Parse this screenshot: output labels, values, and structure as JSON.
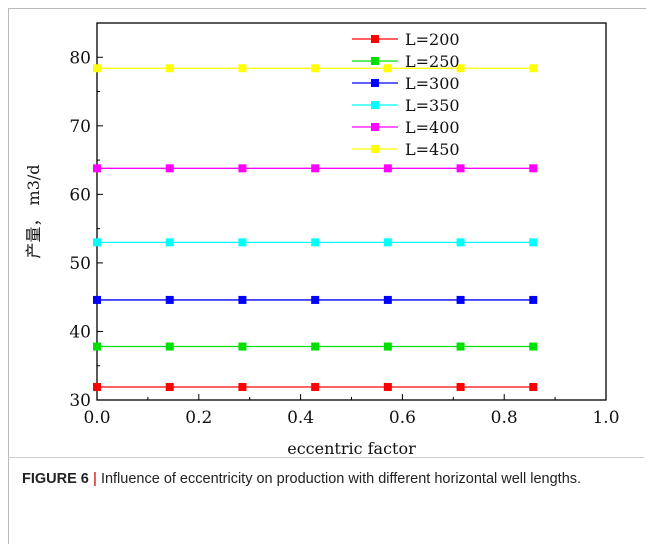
{
  "chart_data": {
    "type": "line",
    "xlabel": "eccentric factor",
    "ylabel": "产量， m3/d",
    "xlim": [
      0.0,
      1.0
    ],
    "ylim": [
      30,
      85
    ],
    "x_ticks": [
      "0.0",
      "0.2",
      "0.4",
      "0.6",
      "0.8",
      "1.0"
    ],
    "y_ticks": [
      "30",
      "40",
      "50",
      "60",
      "70",
      "80"
    ],
    "x": [
      0.0,
      0.1429,
      0.2857,
      0.4286,
      0.5714,
      0.7143,
      0.8571
    ],
    "legend_position": "top-center",
    "marker": "square",
    "series": [
      {
        "name": "L=200",
        "color": "#ff0000",
        "values": [
          31.9,
          31.9,
          31.9,
          31.9,
          31.9,
          31.9,
          31.9
        ]
      },
      {
        "name": "L=250",
        "color": "#00e000",
        "values": [
          37.8,
          37.8,
          37.8,
          37.8,
          37.8,
          37.8,
          37.8
        ]
      },
      {
        "name": "L=300",
        "color": "#0000ff",
        "values": [
          44.6,
          44.6,
          44.6,
          44.6,
          44.6,
          44.6,
          44.6
        ]
      },
      {
        "name": "L=350",
        "color": "#00ffff",
        "values": [
          53.0,
          53.0,
          53.0,
          53.0,
          53.0,
          53.0,
          53.0
        ]
      },
      {
        "name": "L=400",
        "color": "#ff00ff",
        "values": [
          63.8,
          63.8,
          63.8,
          63.8,
          63.8,
          63.8,
          63.8
        ]
      },
      {
        "name": "L=450",
        "color": "#ffff00",
        "values": [
          78.4,
          78.4,
          78.4,
          78.4,
          78.4,
          78.4,
          78.4
        ]
      }
    ]
  },
  "caption": {
    "label": "FIGURE 6",
    "separator": "|",
    "text": "Influence of eccentricity on production with different horizontal well lengths."
  }
}
